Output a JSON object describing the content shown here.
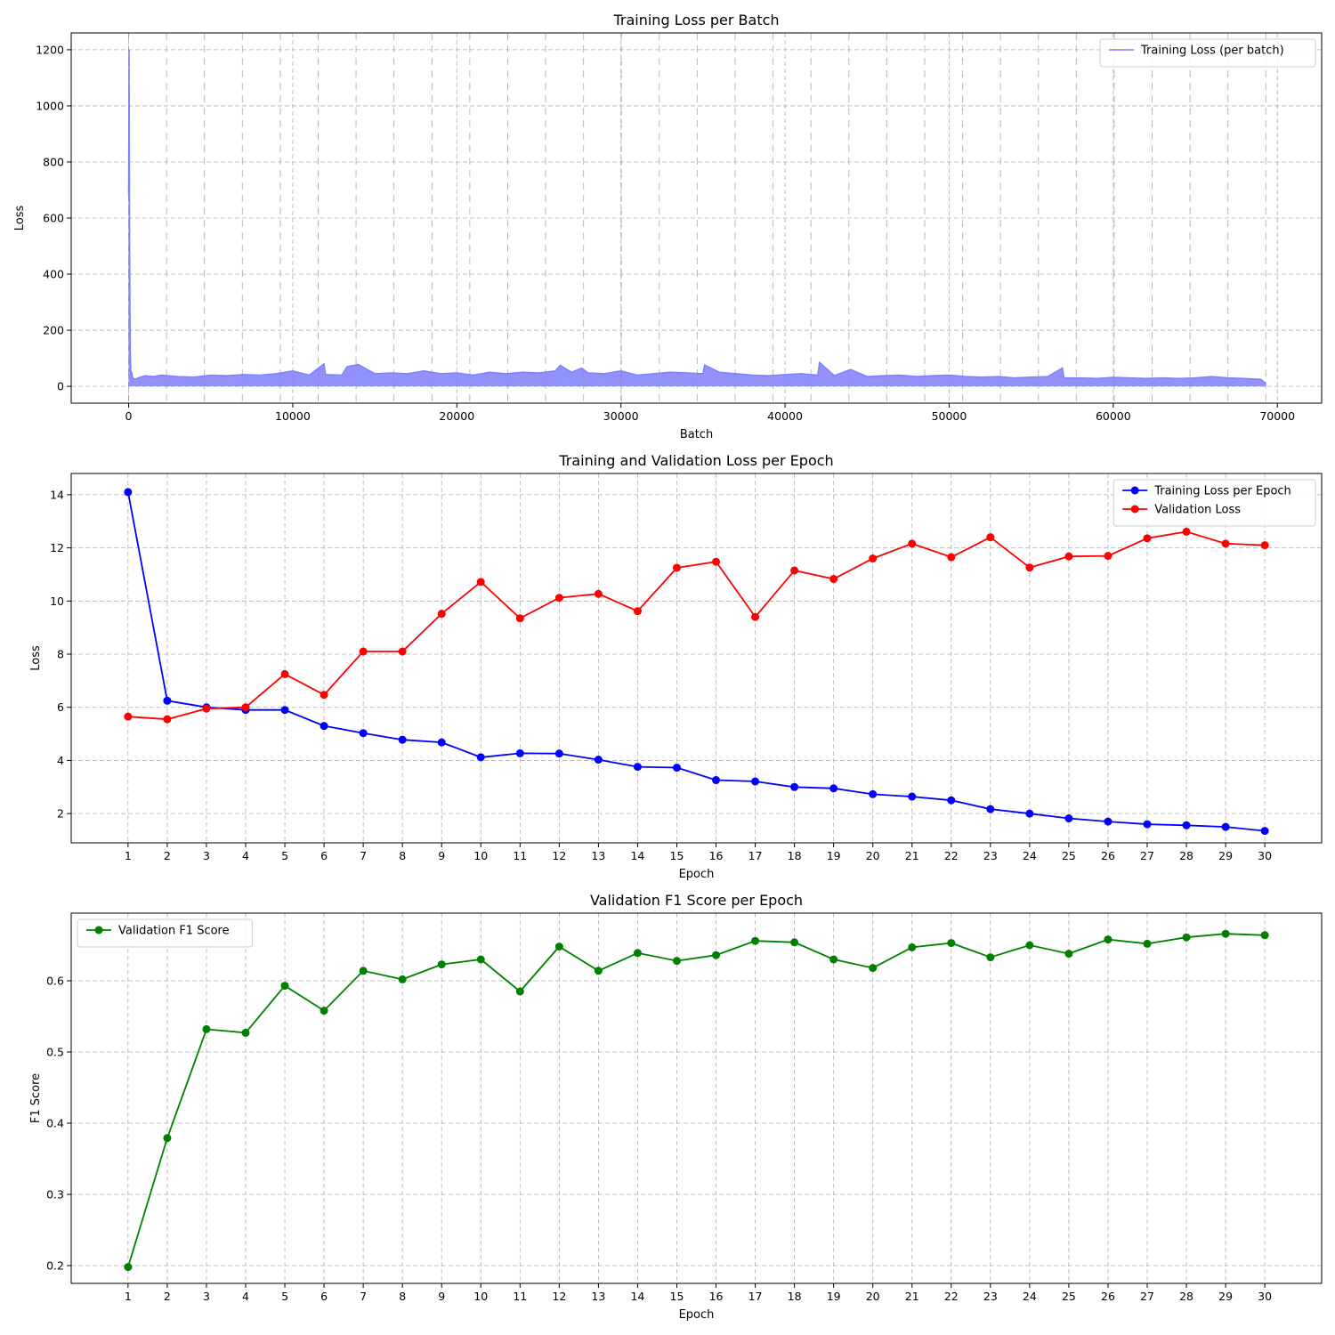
{
  "chart_data": [
    {
      "type": "line",
      "title": "Training Loss per Batch",
      "xlabel": "Batch",
      "ylabel": "Loss",
      "xlim": [
        -3500,
        72700
      ],
      "ylim": [
        -60,
        1260
      ],
      "xticks": [
        0,
        10000,
        20000,
        30000,
        40000,
        50000,
        60000,
        70000
      ],
      "yticks": [
        0,
        200,
        400,
        600,
        800,
        1000,
        1200
      ],
      "grid": true,
      "legend": "upper right",
      "epoch_boundaries": [
        0,
        2310,
        4620,
        6930,
        9240,
        11550,
        13860,
        16170,
        18480,
        20790,
        23100,
        25410,
        27720,
        30030,
        32340,
        34650,
        36960,
        39270,
        41580,
        43890,
        46200,
        48510,
        50820,
        53130,
        55440,
        57750,
        60060,
        62370,
        64680,
        66990,
        69300
      ],
      "series": [
        {
          "name": "Training Loss (per batch)",
          "color": "#7f7fff",
          "x": [
            0,
            30,
            60,
            80,
            100,
            130,
            160,
            200,
            250,
            300,
            400,
            600,
            1000,
            1500,
            2000,
            3000,
            4000,
            5000,
            6000,
            7000,
            8000,
            9000,
            10000,
            11000,
            11900,
            12000,
            13000,
            13300,
            14000,
            15000,
            16000,
            17000,
            18000,
            19000,
            20000,
            21000,
            22000,
            23000,
            24000,
            25000,
            26000,
            26300,
            27000,
            27600,
            28000,
            29000,
            30000,
            31000,
            32000,
            33000,
            34000,
            35000,
            35100,
            36000,
            37000,
            38000,
            39000,
            40000,
            41000,
            42000,
            42100,
            43000,
            44000,
            45000,
            46000,
            47000,
            48000,
            49000,
            50000,
            51000,
            52000,
            53000,
            54000,
            55000,
            56000,
            56900,
            57000,
            58000,
            59000,
            60000,
            61000,
            62000,
            63000,
            64000,
            65000,
            66000,
            67000,
            68000,
            69000,
            69300
          ],
          "y": [
            680,
            1200,
            530,
            300,
            120,
            60,
            40,
            45,
            30,
            28,
            25,
            30,
            38,
            35,
            40,
            35,
            33,
            40,
            38,
            42,
            40,
            45,
            55,
            40,
            80,
            42,
            40,
            70,
            78,
            45,
            48,
            45,
            55,
            45,
            48,
            40,
            50,
            45,
            50,
            48,
            55,
            75,
            50,
            65,
            48,
            45,
            55,
            40,
            45,
            50,
            48,
            45,
            76,
            50,
            45,
            40,
            38,
            42,
            45,
            40,
            85,
            38,
            60,
            35,
            38,
            40,
            35,
            38,
            40,
            35,
            33,
            35,
            30,
            33,
            35,
            65,
            30,
            30,
            28,
            32,
            30,
            28,
            30,
            28,
            30,
            35,
            30,
            28,
            25,
            10
          ]
        }
      ]
    },
    {
      "type": "line",
      "title": "Training and Validation Loss per Epoch",
      "xlabel": "Epoch",
      "ylabel": "Loss",
      "xlim": [
        -0.45,
        31.45
      ],
      "ylim": [
        0.9,
        14.8
      ],
      "categories": [
        "1",
        "2",
        "3",
        "4",
        "5",
        "6",
        "7",
        "8",
        "9",
        "10",
        "11",
        "12",
        "13",
        "14",
        "15",
        "16",
        "17",
        "18",
        "19",
        "20",
        "21",
        "22",
        "23",
        "24",
        "25",
        "26",
        "27",
        "28",
        "29",
        "30"
      ],
      "yticks": [
        2,
        4,
        6,
        8,
        10,
        12,
        14
      ],
      "grid": true,
      "legend": "upper right",
      "series": [
        {
          "name": "Training Loss per Epoch",
          "color": "#0000ff",
          "values": [
            14.1,
            6.25,
            6.0,
            5.9,
            5.9,
            5.3,
            5.03,
            4.78,
            4.68,
            4.12,
            4.27,
            4.26,
            4.03,
            3.76,
            3.73,
            3.26,
            3.21,
            3.0,
            2.95,
            2.73,
            2.64,
            2.5,
            2.17,
            2.0,
            1.82,
            1.7,
            1.6,
            1.56,
            1.5,
            1.35
          ]
        },
        {
          "name": "Validation Loss",
          "color": "#ff0000",
          "values": [
            5.65,
            5.55,
            5.95,
            6.0,
            7.25,
            6.47,
            8.1,
            8.1,
            9.52,
            10.72,
            9.35,
            10.12,
            10.27,
            9.62,
            11.25,
            11.48,
            9.4,
            11.15,
            10.83,
            11.6,
            12.16,
            11.65,
            12.4,
            11.26,
            11.68,
            11.7,
            12.36,
            12.61,
            12.16,
            12.1
          ]
        }
      ]
    },
    {
      "type": "line",
      "title": "Validation F1 Score per Epoch",
      "xlabel": "Epoch",
      "ylabel": "F1 Score",
      "xlim": [
        -0.45,
        31.45
      ],
      "ylim": [
        0.175,
        0.695
      ],
      "categories": [
        "1",
        "2",
        "3",
        "4",
        "5",
        "6",
        "7",
        "8",
        "9",
        "10",
        "11",
        "12",
        "13",
        "14",
        "15",
        "16",
        "17",
        "18",
        "19",
        "20",
        "21",
        "22",
        "23",
        "24",
        "25",
        "26",
        "27",
        "28",
        "29",
        "30"
      ],
      "yticks": [
        "0.2",
        "0.3",
        "0.4",
        "0.5",
        "0.6"
      ],
      "grid": true,
      "legend": "upper left",
      "series": [
        {
          "name": "Validation F1 Score",
          "color": "#008000",
          "values": [
            0.198,
            0.379,
            0.532,
            0.527,
            0.593,
            0.558,
            0.614,
            0.602,
            0.623,
            0.63,
            0.585,
            0.648,
            0.614,
            0.639,
            0.628,
            0.636,
            0.656,
            0.654,
            0.63,
            0.618,
            0.647,
            0.653,
            0.633,
            0.65,
            0.638,
            0.658,
            0.652,
            0.661,
            0.666,
            0.664
          ]
        }
      ]
    }
  ]
}
